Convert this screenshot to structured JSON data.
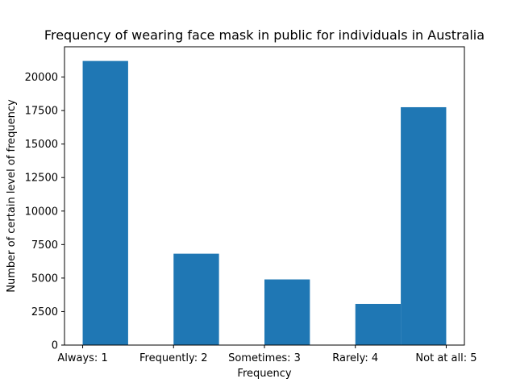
{
  "chart_data": {
    "type": "bar",
    "title": "Frequency of wearing face mask in public for individuals in Australia",
    "xlabel": "Frequency",
    "ylabel": "Number of certain level of frequency",
    "x_domain": [
      0.8,
      5.2
    ],
    "categories": [
      {
        "label": "Always: 1",
        "x": 1
      },
      {
        "label": "Frequently: 2",
        "x": 2
      },
      {
        "label": "Sometimes: 3",
        "x": 3
      },
      {
        "label": "Rarely: 4",
        "x": 4
      },
      {
        "label": "Not at all: 5",
        "x": 5
      }
    ],
    "bars": [
      {
        "x_start": 1.0,
        "x_end": 1.5,
        "value": 21200
      },
      {
        "x_start": 2.0,
        "x_end": 2.5,
        "value": 6820
      },
      {
        "x_start": 2.5,
        "x_end": 3.0,
        "value": 0
      },
      {
        "x_start": 3.0,
        "x_end": 3.5,
        "value": 4900
      },
      {
        "x_start": 4.0,
        "x_end": 4.5,
        "value": 3070
      },
      {
        "x_start": 4.5,
        "x_end": 5.0,
        "value": 17750
      }
    ],
    "ylim": [
      0,
      22260
    ],
    "yticks": [
      0,
      2500,
      5000,
      7500,
      10000,
      12500,
      15000,
      17500,
      20000
    ],
    "bar_color": "#1f77b4",
    "grid": false,
    "legend": "none"
  }
}
